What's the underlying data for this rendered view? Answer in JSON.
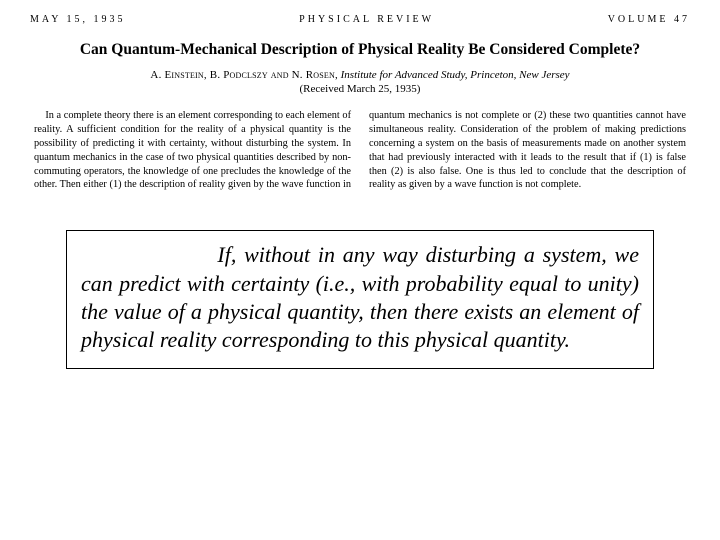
{
  "header": {
    "date": "MAY 15, 1935",
    "journal": "PHYSICAL REVIEW",
    "volume": "VOLUME 47"
  },
  "title": "Can Quantum-Mechanical Description of Physical Reality Be Considered Complete?",
  "authors": {
    "names": "A. Einstein, B. Podclszy and N. Rosen,",
    "affiliation": "Institute for Advanced Study, Princeton, New Jersey"
  },
  "received": "(Received March 25, 1935)",
  "abstract": "In a complete theory there is an element corresponding to each element of reality. A sufficient condition for the reality of a physical quantity is the possibility of predicting it with certainty, without disturbing the system. In quantum mechanics in the case of two physical quantities described by non-commuting operators, the knowledge of one precludes the knowledge of the other. Then either (1) the description of reality given by the wave function in quantum mechanics is not complete or (2) these two quantities cannot have simultaneous reality. Consideration of the problem of making predictions concerning a system on the basis of measurements made on another system that had previously interacted with it leads to the result that if (1) is false then (2) is also false. One is thus led to conclude that the description of reality as given by a wave function is not complete.",
  "quote": "If, without in any way disturbing a system, we can predict with certainty (i.e., with probability equal to unity) the value of a physical quantity, then there exists an element of physical reality corresponding to this physical quantity.",
  "style": {
    "background": "#ffffff",
    "text_color": "#000000",
    "header_fontsize": 10,
    "header_letterspacing": 3,
    "title_fontsize": 15.5,
    "authors_fontsize": 11,
    "abstract_fontsize": 10.3,
    "abstract_columns": 2,
    "abstract_column_gap": 18,
    "quote_fontsize": 22,
    "quote_border": "#000000",
    "quote_first_indent_em": 6.2
  }
}
